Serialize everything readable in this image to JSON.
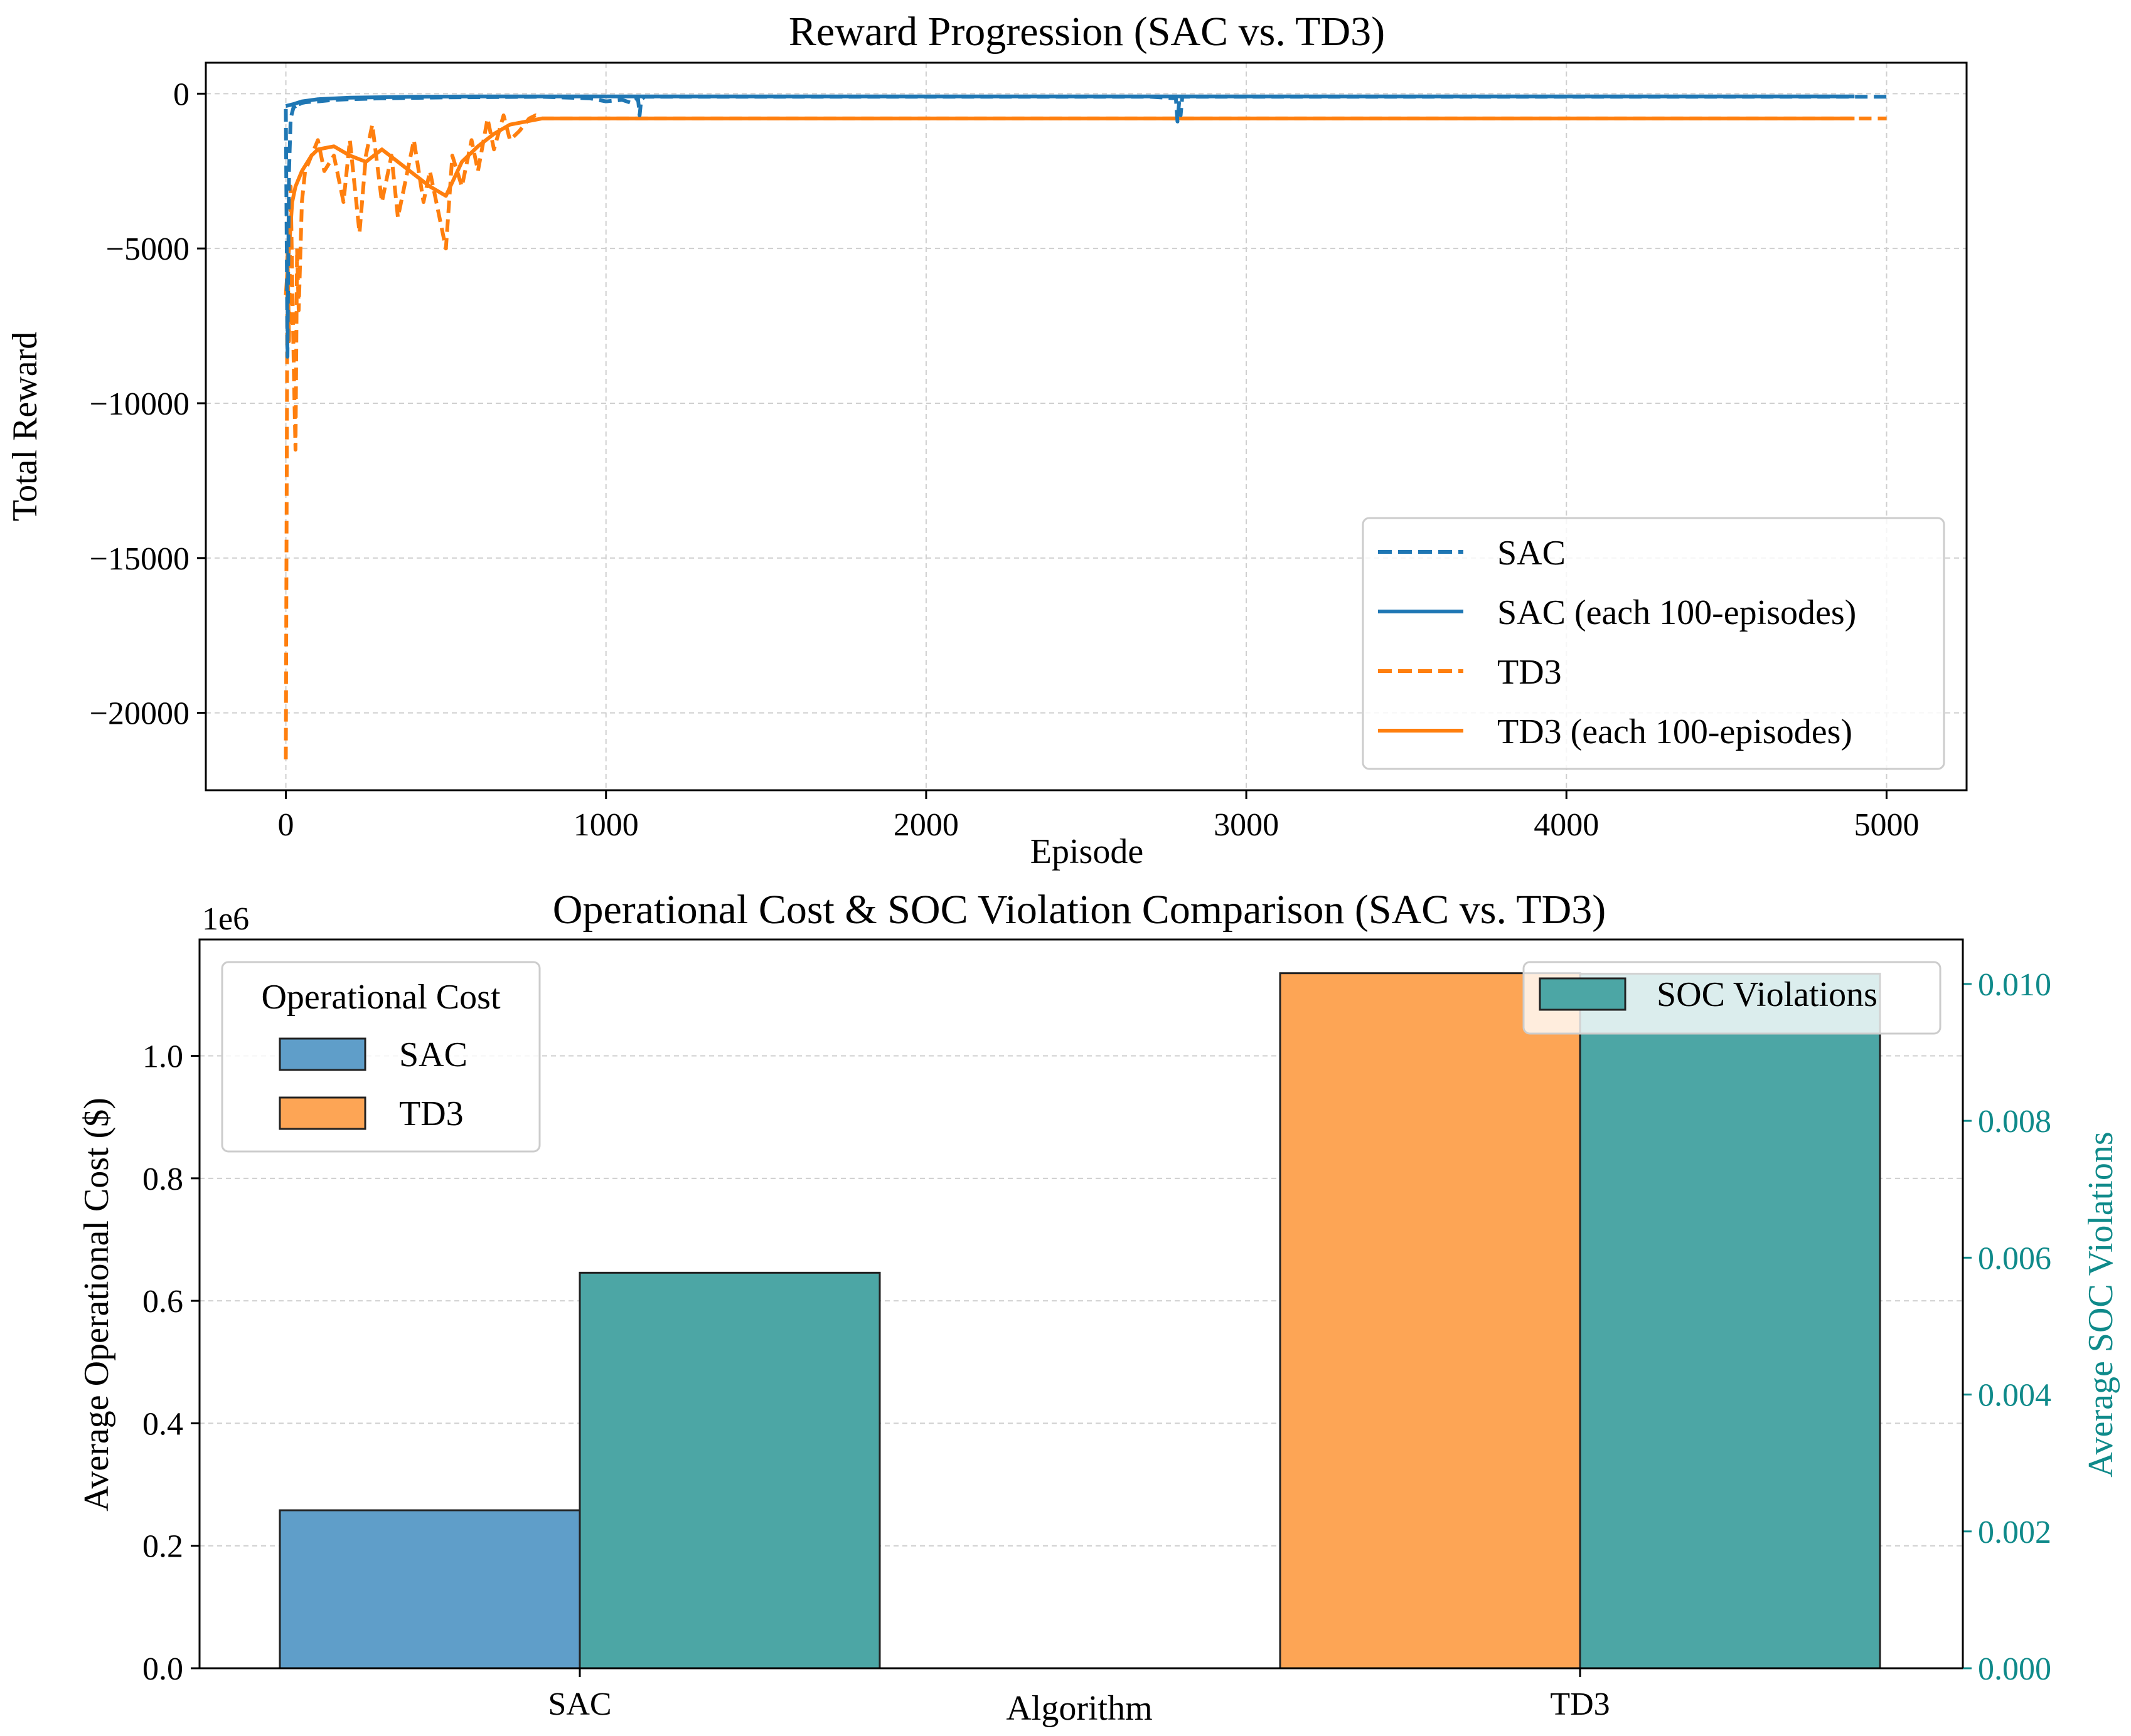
{
  "chart_data": [
    {
      "type": "line",
      "title": "Reward Progression (SAC vs. TD3)",
      "xlabel": "Episode",
      "ylabel": "Total Reward",
      "xlim": [
        -250,
        5250
      ],
      "ylim": [
        -22500,
        1000
      ],
      "xticks": [
        0,
        1000,
        2000,
        3000,
        4000,
        5000
      ],
      "xtick_labels": [
        "0",
        "1000",
        "2000",
        "3000",
        "4000",
        "5000"
      ],
      "yticks": [
        0,
        -5000,
        -10000,
        -15000,
        -20000
      ],
      "ytick_labels": [
        "0",
        "−5000",
        "−10000",
        "−15000",
        "−20000"
      ],
      "grid": true,
      "legend_position": "lower-right",
      "colors": {
        "sac": "#1f77b4",
        "td3": "#ff7f0e"
      },
      "series": [
        {
          "name": "SAC",
          "style": "dashed",
          "color": "#1f77b4",
          "x": [
            0,
            5,
            10,
            15,
            20,
            25,
            30,
            40,
            50,
            60,
            80,
            100,
            150,
            200,
            300,
            500,
            800,
            950,
            1000,
            1050,
            1080,
            1100,
            1105,
            1110,
            1120,
            1200,
            2000,
            2500,
            2700,
            2780,
            2785,
            2790,
            2795,
            2800,
            3000,
            4000,
            5000
          ],
          "y": [
            -500,
            -8500,
            -2500,
            -800,
            -600,
            -400,
            -500,
            -350,
            -300,
            -280,
            -260,
            -250,
            -200,
            -180,
            -150,
            -120,
            -100,
            -150,
            -250,
            -200,
            -300,
            -150,
            -700,
            -200,
            -100,
            -100,
            -100,
            -100,
            -100,
            -150,
            -900,
            -300,
            -700,
            -100,
            -100,
            -100,
            -100
          ]
        },
        {
          "name": "SAC (each 100-episodes)",
          "style": "solid",
          "color": "#1f77b4",
          "x": [
            0,
            20,
            50,
            100,
            200,
            400,
            600,
            800,
            1000,
            1200,
            2000,
            3000,
            4000,
            4900
          ],
          "y": [
            -400,
            -350,
            -250,
            -180,
            -130,
            -100,
            -90,
            -90,
            -90,
            -90,
            -90,
            -90,
            -90,
            -90
          ]
        },
        {
          "name": "TD3",
          "style": "dashed",
          "color": "#ff7f0e",
          "x": [
            0,
            5,
            10,
            15,
            20,
            25,
            30,
            35,
            40,
            50,
            60,
            80,
            100,
            120,
            150,
            180,
            200,
            230,
            250,
            270,
            300,
            330,
            350,
            380,
            400,
            430,
            450,
            480,
            500,
            520,
            550,
            580,
            600,
            630,
            650,
            680,
            700,
            730,
            760,
            780,
            800,
            1000,
            2000,
            3000,
            4000,
            5000
          ],
          "y": [
            -21500,
            -5000,
            -8000,
            -3000,
            -6000,
            -9000,
            -11500,
            -5000,
            -7000,
            -3500,
            -2500,
            -2000,
            -1500,
            -2500,
            -2000,
            -3500,
            -1500,
            -4500,
            -2000,
            -1000,
            -3500,
            -2000,
            -4000,
            -2500,
            -1500,
            -3500,
            -2500,
            -4000,
            -5000,
            -2000,
            -3000,
            -1500,
            -2500,
            -800,
            -1800,
            -700,
            -1500,
            -1200,
            -800,
            -700,
            -800,
            -800,
            -800,
            -800,
            -800,
            -800
          ]
        },
        {
          "name": "TD3 (each 100-episodes)",
          "style": "solid",
          "color": "#ff7f0e",
          "x": [
            0,
            10,
            20,
            30,
            50,
            80,
            100,
            150,
            200,
            250,
            300,
            350,
            400,
            450,
            500,
            550,
            600,
            650,
            700,
            750,
            800,
            1000,
            2000,
            3000,
            4000,
            4900
          ],
          "y": [
            -6500,
            -5000,
            -3500,
            -3000,
            -2500,
            -2000,
            -1800,
            -1700,
            -2000,
            -2200,
            -1800,
            -2200,
            -2600,
            -3000,
            -3300,
            -2200,
            -1700,
            -1300,
            -1000,
            -900,
            -800,
            -800,
            -800,
            -800,
            -800,
            -800
          ]
        }
      ]
    },
    {
      "type": "bar",
      "title": "Operational Cost & SOC Violation Comparison (SAC vs. TD3)",
      "xlabel": "Algorithm",
      "ylabel": "Average Operational Cost ($)",
      "y2label": "Average SOC Violations",
      "categories": [
        "SAC",
        "TD3"
      ],
      "ylim": [
        0,
        1190000
      ],
      "y_offset_label": "1e6",
      "yticks": [
        0,
        200000,
        400000,
        600000,
        800000,
        1000000
      ],
      "ytick_labels": [
        "0.0",
        "0.2",
        "0.4",
        "0.6",
        "0.8",
        "1.0"
      ],
      "y2lim": [
        0,
        0.01065
      ],
      "y2ticks": [
        0,
        0.002,
        0.004,
        0.006,
        0.008,
        0.01
      ],
      "y2tick_labels": [
        "0.000",
        "0.002",
        "0.004",
        "0.006",
        "0.008",
        "0.010"
      ],
      "grid": true,
      "legend_title": "Operational Cost",
      "legend_position": "upper-left",
      "legend2_position": "upper-right",
      "series": [
        {
          "name": "SAC",
          "axis": "left",
          "color": "#5f9ec9",
          "values": [
            258000,
            0
          ]
        },
        {
          "name": "TD3",
          "axis": "left",
          "color": "#fda555",
          "values": [
            0,
            1135000
          ]
        },
        {
          "name": "SOC Violations",
          "axis": "right",
          "color": "#4ca6a5",
          "values": [
            0.00578,
            0.01015
          ]
        }
      ],
      "axis2_color": "#0f8a8a"
    }
  ]
}
